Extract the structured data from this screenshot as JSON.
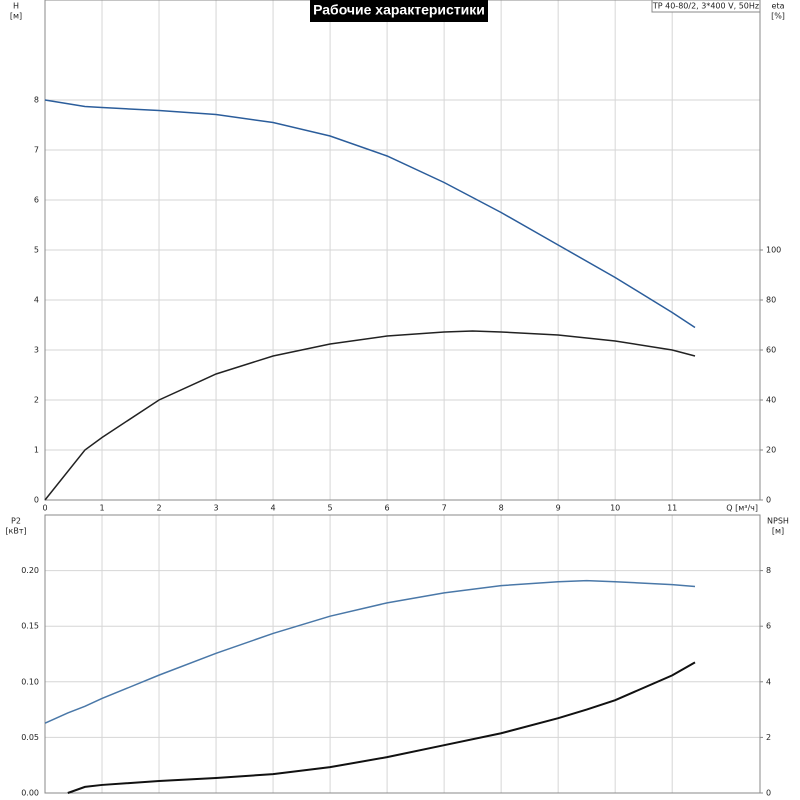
{
  "chart_data": [
    {
      "type": "line",
      "title": "Рабочие характеристики",
      "annotation": "TP 40-80/2, 3*400 V, 50Hz",
      "y_label": "H",
      "y_unit": "[м]",
      "y2_label": "eta",
      "y2_unit": "[%]",
      "x_label": "Q [м³/ч]",
      "x": [
        0,
        0.7,
        1,
        2,
        3,
        4,
        5,
        6,
        7,
        7.5,
        8,
        9,
        10,
        11,
        11.4
      ],
      "series": [
        {
          "name": "H",
          "color": "#2b5d9b",
          "values": [
            8.0,
            7.87,
            7.85,
            7.79,
            7.71,
            7.55,
            7.28,
            6.88,
            6.35,
            6.05,
            5.75,
            5.1,
            4.45,
            3.75,
            3.45
          ]
        },
        {
          "name": "eta",
          "color": "#222222",
          "axis": "y2",
          "values": [
            0,
            20,
            25,
            40,
            50.4,
            57.6,
            62.4,
            65.6,
            67.2,
            67.6,
            67.2,
            66,
            63.6,
            60,
            57.6
          ]
        }
      ],
      "xlim": [
        0,
        12.54
      ],
      "xticks": [
        0,
        1,
        2,
        3,
        4,
        5,
        6,
        7,
        8,
        9,
        10,
        11
      ],
      "ylim": [
        0,
        10
      ],
      "yticks": [
        0,
        1,
        2,
        3,
        4,
        5,
        6,
        7,
        8
      ],
      "y2lim": [
        0,
        200
      ],
      "y2ticks": [
        0,
        20,
        40,
        60,
        80,
        100
      ],
      "grid": true
    },
    {
      "type": "line",
      "y_label": "P2",
      "y_unit": "[кВт]",
      "y2_label": "NPSH",
      "y2_unit": "[м]",
      "x": [
        0,
        0.4,
        0.7,
        1,
        2,
        3,
        4,
        5,
        6,
        7,
        8,
        9,
        9.5,
        10,
        11,
        11.4
      ],
      "series": [
        {
          "name": "P2",
          "color": "#4a78a8",
          "values": [
            0.0628,
            0.072,
            0.078,
            0.085,
            0.106,
            0.1256,
            0.1435,
            0.159,
            0.171,
            0.18,
            0.1865,
            0.19,
            0.191,
            0.19,
            0.1874,
            0.1857
          ]
        },
        {
          "name": "NPSH",
          "color": "#111111",
          "axis": "y2",
          "width": 2,
          "values": [
            null,
            0,
            0.22,
            0.29,
            0.43,
            0.54,
            0.68,
            0.93,
            1.29,
            1.72,
            2.15,
            2.69,
            3.0,
            3.34,
            4.23,
            4.7
          ]
        }
      ],
      "xlim": [
        0,
        12.54
      ],
      "xticks": [
        0,
        1,
        2,
        3,
        4,
        5,
        6,
        7,
        8,
        9,
        10,
        11
      ],
      "ylim": [
        0,
        0.25
      ],
      "yticks": [
        {
          "value": 0,
          "label": "0.00"
        },
        0.05,
        {
          "value": 0.1,
          "label": "0.10"
        },
        0.15,
        {
          "value": 0.2,
          "label": "0.20"
        }
      ],
      "y2lim": [
        0,
        10
      ],
      "y2ticks": [
        0,
        2,
        4,
        6,
        8
      ],
      "grid": true
    }
  ]
}
